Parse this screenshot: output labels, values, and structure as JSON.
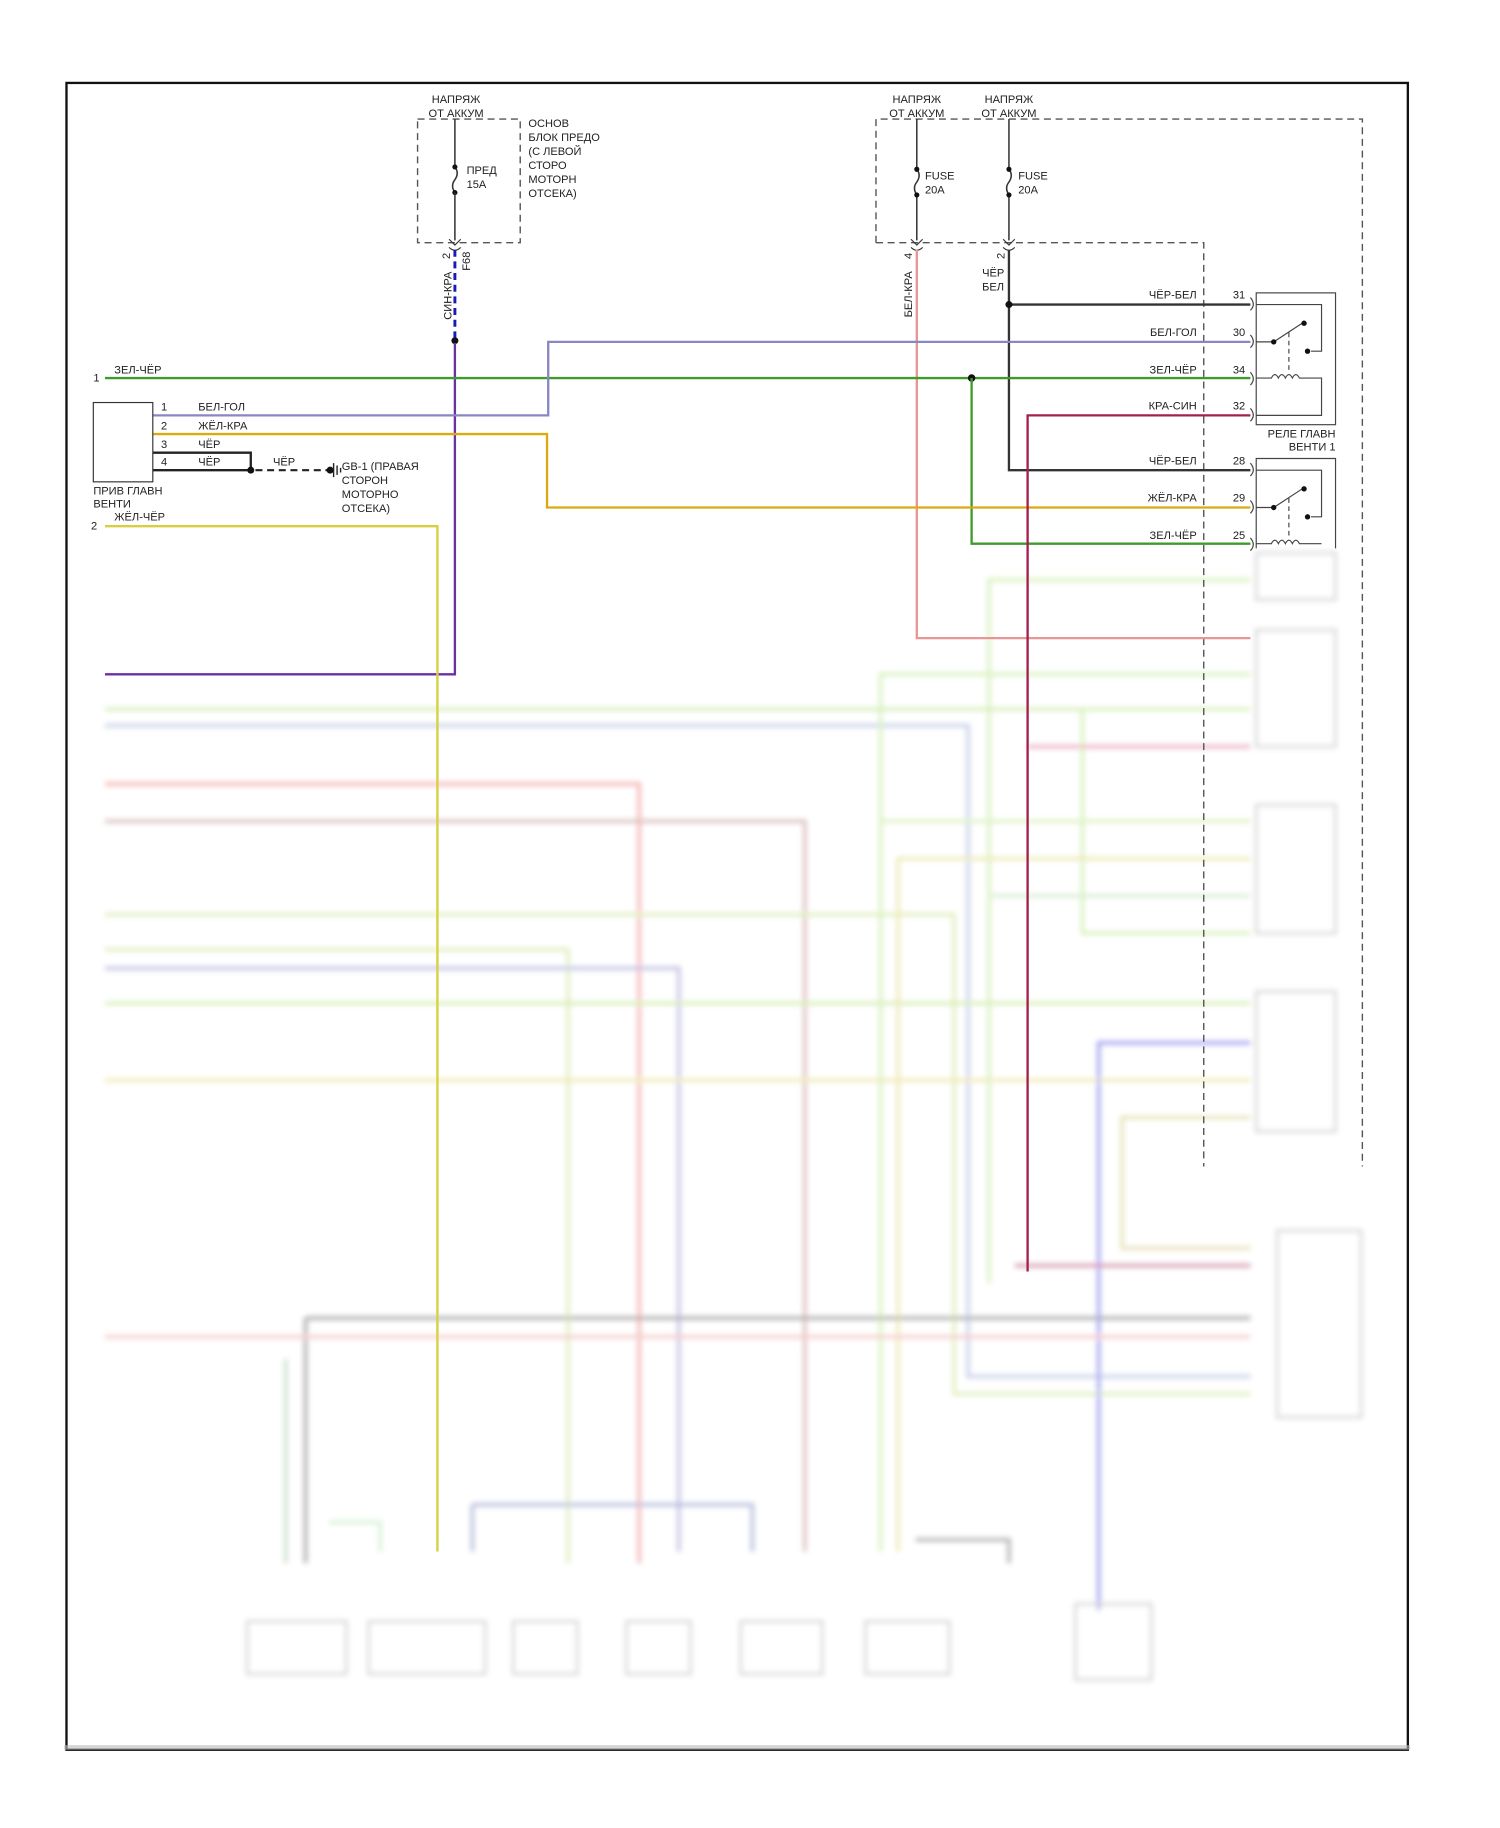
{
  "diagram": {
    "power_left": {
      "line1": "НАПРЯЖ",
      "line2": "ОТ АККУМ",
      "fuse_name": "ПРЕД",
      "fuse_rating": "15A",
      "box_label": [
        "ОСНОВ",
        "БЛОК ПРЕДО",
        "(С ЛЕВОЙ",
        "СТОРО",
        "МОТОРН",
        "ОТСЕКА)"
      ],
      "pin": "2",
      "connector": "F68",
      "wire": "СИН-КРА"
    },
    "power_right_a": {
      "line1": "НАПРЯЖ",
      "line2": "ОТ АККУМ",
      "fuse_name": "FUSE",
      "fuse_rating": "20A",
      "pin": "4",
      "wire": "БЕЛ-КРА"
    },
    "power_right_b": {
      "line1": "НАПРЯЖ",
      "line2": "ОТ АККУМ",
      "fuse_name": "FUSE",
      "fuse_rating": "20A",
      "pin": "2",
      "wire_line1": "ЧЁР",
      "wire_line2": "БЕЛ"
    },
    "left_wire_1": {
      "pin": "1",
      "wire": "ЗЕЛ-ЧЁР"
    },
    "left_wire_2": {
      "pin": "2",
      "wire": "ЖЁЛ-ЧЁР"
    },
    "fan_motor": {
      "label": [
        "ПРИВ ГЛАВН",
        "ВЕНТИ"
      ],
      "pins": [
        {
          "pin": "1",
          "wire": "БЕЛ-ГОЛ"
        },
        {
          "pin": "2",
          "wire": "ЖЁЛ-КРА"
        },
        {
          "pin": "3",
          "wire": "ЧЁР"
        },
        {
          "pin": "4",
          "wire": "ЧЁР"
        }
      ],
      "ground_wire": "ЧЁР",
      "ground_label": [
        "GB-1 (ПРАВАЯ",
        "СТОРОН",
        "МОТОРНО",
        "ОТСЕКА)"
      ]
    },
    "relay_1": {
      "label": [
        "РЕЛЕ ГЛАВН",
        "ВЕНТИ 1"
      ],
      "pins": [
        {
          "pin": "31",
          "wire": "ЧЁР-БЕЛ"
        },
        {
          "pin": "30",
          "wire": "БЕЛ-ГОЛ"
        },
        {
          "pin": "34",
          "wire": "ЗЕЛ-ЧЁР"
        },
        {
          "pin": "32",
          "wire": "КРА-СИН"
        }
      ]
    },
    "relay_2": {
      "pins": [
        {
          "pin": "28",
          "wire": "ЧЁР-БЕЛ"
        },
        {
          "pin": "29",
          "wire": "ЖЁЛ-КРА"
        },
        {
          "pin": "25",
          "wire": "ЗЕЛ-ЧЁР"
        }
      ]
    },
    "colors": {
      "green": "#3f9a2c",
      "purple": "#6b2fa6",
      "white_blue": "#8a86c4",
      "yellow_red": "#dcaa10",
      "yellow_black": "#d6d040",
      "white_red": "#e79595",
      "red_blue": "#a3204e",
      "blue_red": "#1a1ab8",
      "black": "#333333"
    }
  }
}
